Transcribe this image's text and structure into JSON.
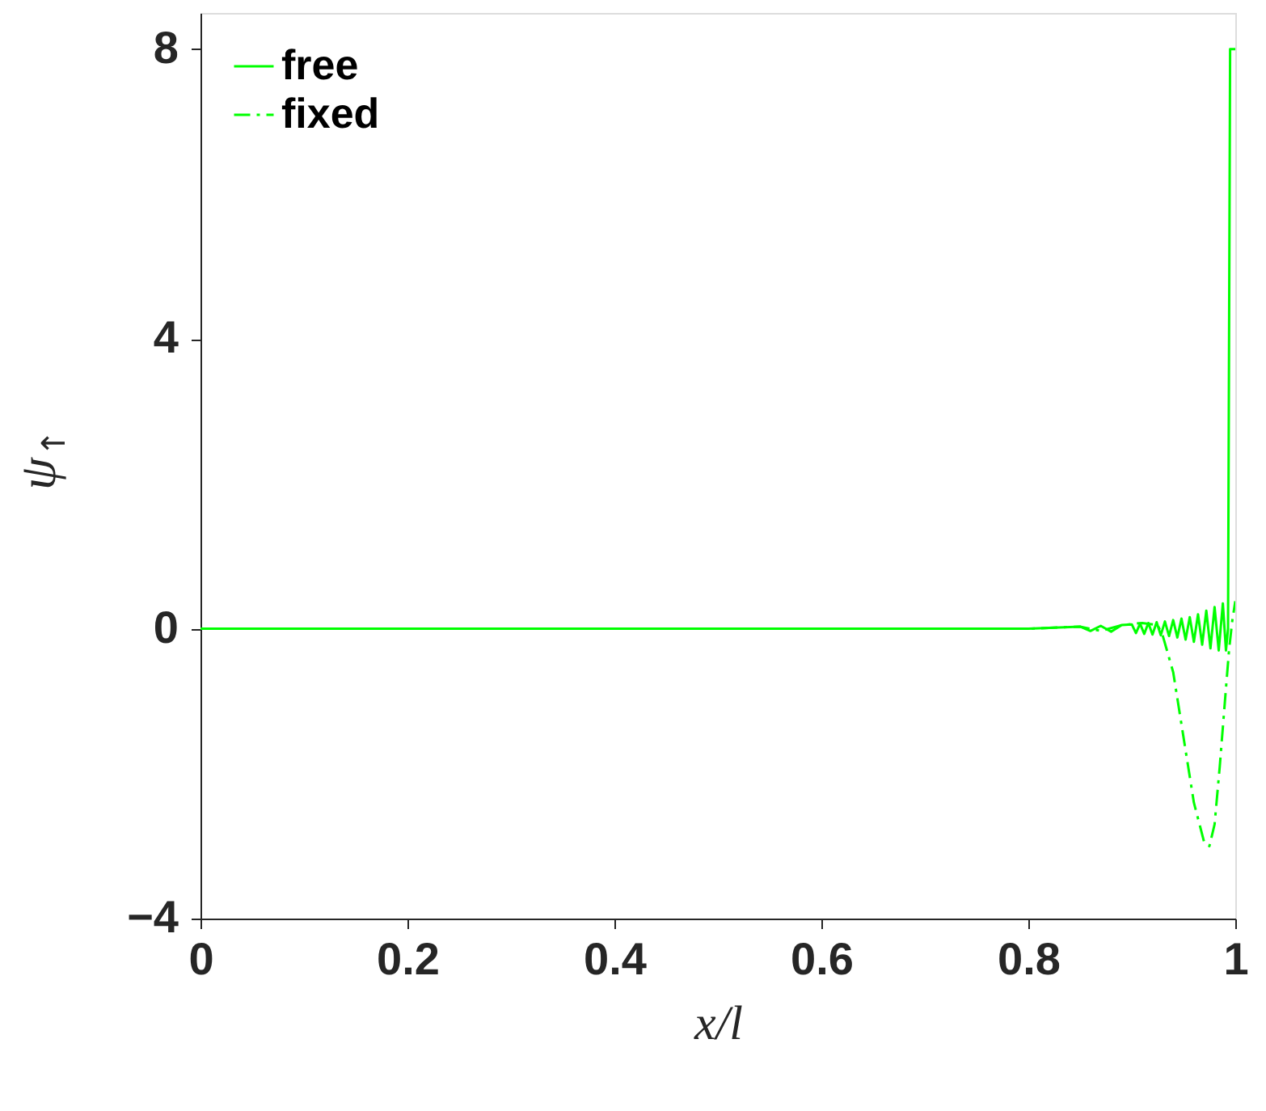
{
  "chart_data": {
    "type": "line",
    "xlabel": "x/l",
    "ylabel": "ψ$_{↑}$",
    "xlim": [
      0,
      1
    ],
    "ylim": [
      -4,
      8.5
    ],
    "xticks": [
      0,
      0.2,
      0.4,
      0.6,
      0.8,
      1
    ],
    "yticks": [
      -4,
      0,
      4,
      8
    ],
    "grid": false,
    "legend": "top left",
    "series": [
      {
        "name": "free",
        "color": "#00ff00",
        "line_style": "solid",
        "x": [
          0,
          0.1,
          0.2,
          0.3,
          0.4,
          0.5,
          0.6,
          0.7,
          0.8,
          0.85,
          0.86,
          0.87,
          0.88,
          0.89,
          0.9,
          0.904,
          0.908,
          0.912,
          0.916,
          0.92,
          0.924,
          0.928,
          0.932,
          0.936,
          0.94,
          0.944,
          0.948,
          0.952,
          0.956,
          0.96,
          0.964,
          0.968,
          0.972,
          0.976,
          0.98,
          0.984,
          0.988,
          0.991,
          0.993,
          0.995,
          1
        ],
        "values": [
          0,
          0,
          0,
          0,
          0,
          0,
          0,
          0,
          0,
          0.03,
          -0.03,
          0.04,
          -0.04,
          0.05,
          0.06,
          -0.06,
          0.07,
          -0.07,
          0.08,
          -0.08,
          0.09,
          -0.09,
          0.1,
          -0.1,
          0.12,
          -0.12,
          0.14,
          -0.15,
          0.16,
          -0.18,
          0.2,
          -0.22,
          0.25,
          -0.27,
          0.3,
          -0.3,
          0.35,
          -0.3,
          0,
          8,
          8
        ]
      },
      {
        "name": "fixed",
        "color": "#00ff00",
        "line_style": "dashdot",
        "x": [
          0,
          0.1,
          0.2,
          0.3,
          0.4,
          0.5,
          0.6,
          0.7,
          0.8,
          0.85,
          0.87,
          0.89,
          0.91,
          0.925,
          0.93,
          0.94,
          0.95,
          0.96,
          0.97,
          0.975,
          0.98,
          0.985,
          0.99,
          0.994,
          0.997,
          1
        ],
        "values": [
          0,
          0,
          0,
          0,
          0,
          0,
          0,
          0,
          0,
          0.03,
          -0.03,
          0.05,
          0.08,
          0.05,
          -0.1,
          -0.6,
          -1.5,
          -2.4,
          -2.95,
          -3.0,
          -2.7,
          -1.9,
          -1.0,
          -0.29,
          0.1,
          0.38
        ]
      }
    ]
  }
}
